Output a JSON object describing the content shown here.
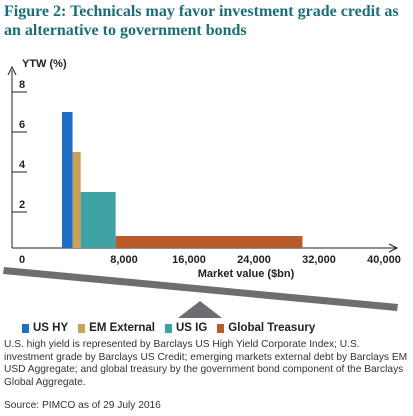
{
  "title": "Figure 2: Technicals may favor investment grade credit as an alternative to government bonds",
  "colors": {
    "title": "#1a6e78",
    "axis": "#222222",
    "seesaw_bar": "#6d6e71",
    "fulcrum": "#6d6e71"
  },
  "chart_data": {
    "type": "bar",
    "title": "",
    "ylabel": "YTW (%)",
    "xlabel": "Market value ($bn)",
    "ylim": [
      0,
      8
    ],
    "xlim": [
      0,
      40000
    ],
    "y_ticks": [
      "8",
      "6",
      "4",
      "2"
    ],
    "x_ticks": [
      "0",
      "8,000",
      "16,000",
      "24,000",
      "32,000",
      "40,000"
    ],
    "grid": false,
    "legend_position": "bottom",
    "series": [
      {
        "name": "US HY",
        "color": "#1f6fc6",
        "market_value": 1300,
        "ytw": 6.8
      },
      {
        "name": "EM External",
        "color": "#c9a15a",
        "market_value": 1000,
        "ytw": 4.8
      },
      {
        "name": "US IG",
        "color": "#3fa3a3",
        "market_value": 4300,
        "ytw": 2.8
      },
      {
        "name": "Global Treasury",
        "color": "#b85c2a",
        "market_value": 23000,
        "ytw": 0.6
      }
    ]
  },
  "note": "U.S. high yield is represented by Barclays US High Yield Corporate Index; U.S. investment grade by Barclays US Credit; emerging markets external debt by Barclays EM USD Aggregate; and global treasury by the government bond component of the Barclays Global Aggregate.",
  "source": "Source: PIMCO as of 29 July 2016"
}
